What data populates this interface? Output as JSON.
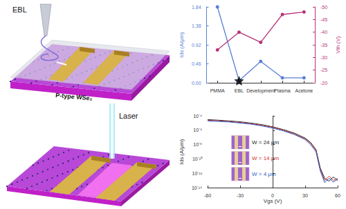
{
  "illustrations": [
    {
      "label": "EBL",
      "substrate": "P-type WSe₂"
    },
    {
      "label": "Laser"
    }
  ],
  "chart_data": [
    {
      "type": "line",
      "categories": [
        "PMMA",
        "EBL",
        "Development",
        "Plasma",
        "Acetone"
      ],
      "ylabel": "Ids (A/μm)",
      "y2label": "Vth (V)",
      "ylim": [
        0,
        1.84
      ],
      "yticks": [
        {
          "value": 0,
          "label": "0.00"
        },
        0.46,
        0.92,
        1.38,
        1.84
      ],
      "y2lim": [
        -20,
        -50
      ],
      "y2ticks": [
        -20,
        -25,
        -30,
        -35,
        -40,
        -45,
        -50
      ],
      "grid": false,
      "series": [
        {
          "color": "#5a7fd6",
          "marker": "circle",
          "values": [
            1.84,
            0.05,
            0.52,
            0.12,
            0.12
          ]
        },
        {
          "color": "#b8337a",
          "marker": "circle",
          "axis": "y2",
          "values": [
            -33,
            -40,
            -36,
            -47,
            -48
          ]
        },
        {
          "type": "scatter",
          "color": "#000000",
          "marker": "star",
          "values": [
            null,
            0.05,
            null,
            null,
            null
          ]
        }
      ]
    },
    {
      "type": "line",
      "log": "y",
      "xlabel": "Vgs (V)",
      "ylabel": "Ids (A/μm)",
      "xlim": [
        -60,
        60
      ],
      "xticks": [
        -60,
        -30,
        0,
        30,
        60
      ],
      "ylim": [
        1e-14,
        0.0001
      ],
      "yticks": [
        {
          "value": 1e-14,
          "label": "10⁻¹⁴"
        },
        {
          "value": 1e-12,
          "label": "10⁻¹²"
        },
        {
          "value": 1e-10,
          "label": "10⁻¹⁰"
        },
        {
          "value": 1e-08,
          "label": "10⁻⁸"
        },
        {
          "value": 1e-06,
          "label": "10⁻⁶"
        },
        {
          "value": 0.0001,
          "label": "10⁻⁴"
        }
      ],
      "grid": false,
      "x": [
        -60,
        -50,
        -40,
        -30,
        -20,
        -10,
        0,
        10,
        20,
        30,
        35,
        40,
        44,
        48,
        52,
        56,
        60
      ],
      "series": [
        {
          "name": "W = 24 μm",
          "color": "#222222",
          "values": [
            3e-05,
            2.5e-05,
            2e-05,
            1.5e-05,
            1e-05,
            6e-06,
            3e-06,
            1.2e-06,
            4e-07,
            8e-08,
            2e-08,
            2e-09,
            5e-12,
            2e-13,
            8e-14,
            3e-13,
            1e-13
          ]
        },
        {
          "name": "W = 14 μm",
          "color": "#d03030",
          "values": [
            2.5e-05,
            2e-05,
            1.6e-05,
            1.2e-05,
            8e-06,
            5e-06,
            2.5e-06,
            1e-06,
            3e-07,
            6e-08,
            1.5e-08,
            1.5e-09,
            3e-12,
            1e-13,
            4e-13,
            1e-13,
            2e-13
          ]
        },
        {
          "name": "W = 4 μm",
          "color": "#2a5cc8",
          "values": [
            2e-05,
            1.7e-05,
            1.4e-05,
            1e-05,
            7e-06,
            4e-06,
            2e-06,
            8e-07,
            2.5e-07,
            5e-08,
            1e-08,
            1e-09,
            2e-12,
            5e-14,
            2e-13,
            6e-14,
            1.5e-13
          ]
        }
      ]
    }
  ]
}
